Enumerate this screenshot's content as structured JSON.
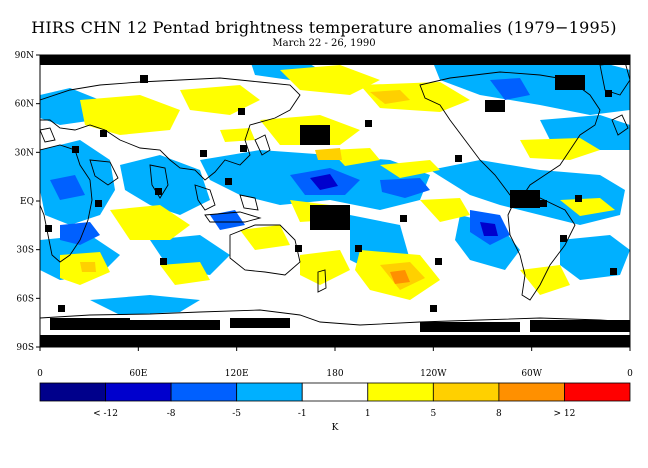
{
  "title": "HIRS CHN 12 Pentad brightness temperature anomalies (1979−1995)",
  "subtitle": "March 22 - 26, 1990",
  "lat_ticks": [
    "90N",
    "60N",
    "30N",
    "EQ",
    "30S",
    "60S",
    "90S"
  ],
  "lon_ticks": [
    "0",
    "60E",
    "120E",
    "180",
    "120W",
    "60W",
    "0"
  ],
  "colorbar": {
    "colors": [
      "#00008b",
      "#0000cd",
      "#0060ff",
      "#00b0ff",
      "#ffffff",
      "#ffff00",
      "#ffd000",
      "#ff9000",
      "#ff0000"
    ],
    "labels": [
      "< -12",
      "-8",
      "-5",
      "-1",
      "1",
      "5",
      "8",
      "> 12"
    ],
    "unit": "K"
  },
  "colors": {
    "missing": "#000000",
    "coast": "#000000"
  }
}
